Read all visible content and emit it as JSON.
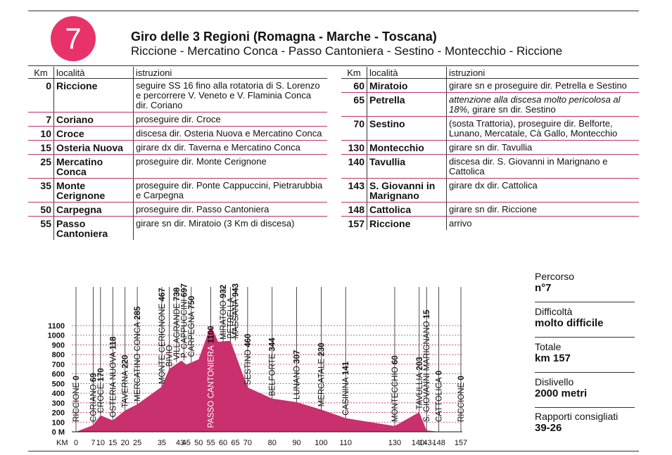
{
  "route_number": "7",
  "title": "Giro delle 3 Regioni (Romagna - Marche - Toscana)",
  "subtitle": "Riccione - Mercatino Conca - Passo Cantoniera - Sestino - Montecchio - Riccione",
  "table_headers": {
    "km": "Km",
    "locality": "località",
    "instructions": "istruzioni"
  },
  "left_rows": [
    {
      "km": "0",
      "loc": "Riccione",
      "instr": "seguire SS 16 fino alla rotatoria di S. Lorenzo e percorrere V. Veneto e V. Flaminia Conca dir. Coriano"
    },
    {
      "km": "7",
      "loc": "Coriano",
      "instr": "proseguire dir. Croce"
    },
    {
      "km": "10",
      "loc": "Croce",
      "instr": "discesa dir. Osteria Nuova e Mercatino Conca"
    },
    {
      "km": "15",
      "loc": "Osteria Nuova",
      "instr": "girare dx dir. Taverna e Mercatino Conca"
    },
    {
      "km": "25",
      "loc": "Mercatino Conca",
      "instr": "proseguire dir. Monte Cerignone"
    },
    {
      "km": "35",
      "loc": "Monte Cerignone",
      "instr": "proseguire dir. Ponte Cappuccini, Pietrarubbia e Carpegna"
    },
    {
      "km": "50",
      "loc": "Carpegna",
      "instr": "proseguire dir. Passo Cantoniera"
    },
    {
      "km": "55",
      "loc": "Passo Cantoniera",
      "instr": "girare sn dir. Miratoio (3 Km di discesa)"
    }
  ],
  "right_rows": [
    {
      "km": "60",
      "loc": "Miratoio",
      "instr": "girare sn e proseguire dir. Petrella e Sestino"
    },
    {
      "km": "65",
      "loc": "Petrella",
      "instr_italic": "attenzione alla discesa molto pericolosa al 18%,",
      "instr": "girare sn dir. Sestino"
    },
    {
      "km": "70",
      "loc": "Sestino",
      "instr": "(sosta Trattoria), proseguire dir. Belforte, Lunano, Mercatale, Cà Gallo, Montecchio"
    },
    {
      "km": "130",
      "loc": "Montecchio",
      "instr": "girare sn dir. Tavullia"
    },
    {
      "km": "140",
      "loc": "Tavullia",
      "instr": "discesa dir. S. Giovanni in Marignano e Cattolica"
    },
    {
      "km": "143",
      "loc": "S. Giovanni in Marignano",
      "instr": "girare dx dir. Cattolica"
    },
    {
      "km": "148",
      "loc": "Cattolica",
      "instr": "girare sn dir. Riccione"
    },
    {
      "km": "157",
      "loc": "Riccione",
      "instr": "arrivo"
    }
  ],
  "summary": [
    {
      "label": "Percorso",
      "value": "n°7"
    },
    {
      "label": "Difficoltà",
      "value": "molto difficile"
    },
    {
      "label": "Totale",
      "value": "km 157"
    },
    {
      "label": "Dislivello",
      "value": "2000 metri"
    },
    {
      "label": "Rapporti consigliati",
      "value": "39-26"
    }
  ],
  "colors": {
    "accent": "#e8326a",
    "profile_fill": "#c8306e",
    "rule": "#c0306a"
  },
  "chart_data": {
    "type": "area",
    "x_axis_label": "KM",
    "ylim": [
      0,
      1100
    ],
    "y_ticks": [
      {
        "value": 0,
        "label": "0 M"
      },
      {
        "value": 100,
        "label": "100"
      },
      {
        "value": 200,
        "label": "200"
      },
      {
        "value": 300,
        "label": "300"
      },
      {
        "value": 400,
        "label": "400"
      },
      {
        "value": 500,
        "label": "500"
      },
      {
        "value": 600,
        "label": "600"
      },
      {
        "value": 700,
        "label": "700"
      },
      {
        "value": 800,
        "label": "800"
      },
      {
        "value": 900,
        "label": "900"
      },
      {
        "value": 1000,
        "label": "1000"
      },
      {
        "value": 1100,
        "label": "1100"
      }
    ],
    "x_ticks": [
      {
        "value": 0,
        "label": "0"
      },
      {
        "value": 7,
        "label": "7"
      },
      {
        "value": 10,
        "label": "10"
      },
      {
        "value": 15,
        "label": "15"
      },
      {
        "value": 20,
        "label": "20"
      },
      {
        "value": 25,
        "label": "25"
      },
      {
        "value": 35,
        "label": "35"
      },
      {
        "value": 43,
        "label": "43-"
      },
      {
        "value": 45,
        "label": "45"
      },
      {
        "value": 50,
        "label": "50"
      },
      {
        "value": 55,
        "label": "55"
      },
      {
        "value": 60,
        "label": "60"
      },
      {
        "value": 65,
        "label": "65"
      },
      {
        "value": 70,
        "label": "70"
      },
      {
        "value": 80,
        "label": "80"
      },
      {
        "value": 90,
        "label": "90"
      },
      {
        "value": 100,
        "label": "100"
      },
      {
        "value": 110,
        "label": "110"
      },
      {
        "value": 130,
        "label": "130"
      },
      {
        "value": 140,
        "label": "140-"
      },
      {
        "value": 143,
        "label": "143-"
      },
      {
        "value": 148,
        "label": "148"
      },
      {
        "value": 157,
        "label": "157"
      }
    ],
    "profile": [
      {
        "km": 0,
        "alt": 0
      },
      {
        "km": 7,
        "alt": 69
      },
      {
        "km": 10,
        "alt": 170
      },
      {
        "km": 15,
        "alt": 118
      },
      {
        "km": 20,
        "alt": 220
      },
      {
        "km": 25,
        "alt": 285
      },
      {
        "km": 35,
        "alt": 467
      },
      {
        "km": 38,
        "alt": 650
      },
      {
        "km": 43,
        "alt": 738
      },
      {
        "km": 45,
        "alt": 697
      },
      {
        "km": 50,
        "alt": 750
      },
      {
        "km": 55,
        "alt": 1100
      },
      {
        "km": 58,
        "alt": 932
      },
      {
        "km": 63,
        "alt": 943
      },
      {
        "km": 70,
        "alt": 460
      },
      {
        "km": 80,
        "alt": 344
      },
      {
        "km": 90,
        "alt": 307
      },
      {
        "km": 100,
        "alt": 230
      },
      {
        "km": 110,
        "alt": 141
      },
      {
        "km": 130,
        "alt": 60
      },
      {
        "km": 140,
        "alt": 203
      },
      {
        "km": 143,
        "alt": 15
      },
      {
        "km": 148,
        "alt": 0
      },
      {
        "km": 157,
        "alt": 0
      }
    ],
    "labels": [
      {
        "km": 0,
        "alt": 0,
        "name": "RICCIONE",
        "alt_label": "0",
        "label_base": 10
      },
      {
        "km": 7,
        "alt": 69,
        "name": "CORIANO",
        "alt_label": "69",
        "label_base": 85
      },
      {
        "km": 10,
        "alt": 170,
        "name": "CROCE",
        "alt_label": "170",
        "label_base": 180
      },
      {
        "km": 15,
        "alt": 118,
        "name": "OSTERIA NUOVA",
        "alt_label": "118",
        "label_base": 135
      },
      {
        "km": 20,
        "alt": 220,
        "name": "TAVERNA",
        "alt_label": "220",
        "label_base": 235
      },
      {
        "km": 25,
        "alt": 285,
        "name": "MERCATINO CONCA",
        "alt_label": "285",
        "label_base": 300
      },
      {
        "km": 35,
        "alt": 467,
        "name": "MONTE CERIGNONE",
        "alt_label": "467",
        "label_base": 480
      },
      {
        "km": 38,
        "alt": 650,
        "name": "BIVIO",
        "alt_label": "",
        "label_base": 660
      },
      {
        "km": 41,
        "alt": 720,
        "name": "VILLAGRANDE",
        "alt_label": "738",
        "label_base": 730
      },
      {
        "km": 44,
        "alt": 738,
        "name": "P. CAPPUCCINI",
        "alt_label": "697",
        "label_base": 750
      },
      {
        "km": 47,
        "alt": 720,
        "name": "CARPEGNA",
        "alt_label": "750",
        "label_base": 760
      },
      {
        "km": 55,
        "alt": 1100,
        "name": "PASSO CANTONIERA",
        "alt_label": "1100",
        "label_base": 40
      },
      {
        "km": 60,
        "alt": 932,
        "name": "MIRATOIO",
        "alt_label": "932",
        "label_base": 940
      },
      {
        "km": 63,
        "alt": 940,
        "name": "PETRELLA",
        "alt_label": "",
        "label_base": 950
      },
      {
        "km": 65,
        "alt": 943,
        "name": "MASSANA",
        "alt_label": "943",
        "label_base": 950
      },
      {
        "km": 70,
        "alt": 460,
        "name": "SESTINO",
        "alt_label": "460",
        "label_base": 470
      },
      {
        "km": 80,
        "alt": 344,
        "name": "BELFORTE",
        "alt_label": "344",
        "label_base": 355
      },
      {
        "km": 90,
        "alt": 307,
        "name": "LUNANO",
        "alt_label": "307",
        "label_base": 320
      },
      {
        "km": 100,
        "alt": 230,
        "name": "MERCATALE",
        "alt_label": "230",
        "label_base": 245
      },
      {
        "km": 110,
        "alt": 141,
        "name": "CASININA",
        "alt_label": "141",
        "label_base": 155
      },
      {
        "km": 130,
        "alt": 60,
        "name": "MONTECCHIO",
        "alt_label": "60",
        "label_base": 75
      },
      {
        "km": 140,
        "alt": 203,
        "name": "TAVULLIA",
        "alt_label": "203",
        "label_base": 215
      },
      {
        "km": 143,
        "alt": 15,
        "name": "S. GIOVANNI MARIGNANO",
        "alt_label": "15",
        "label_base": 30
      },
      {
        "km": 148,
        "alt": 0,
        "name": "CATTOLICA",
        "alt_label": "0",
        "label_base": 15
      },
      {
        "km": 157,
        "alt": 0,
        "name": "RICCIONE",
        "alt_label": "0",
        "label_base": 15
      }
    ]
  }
}
